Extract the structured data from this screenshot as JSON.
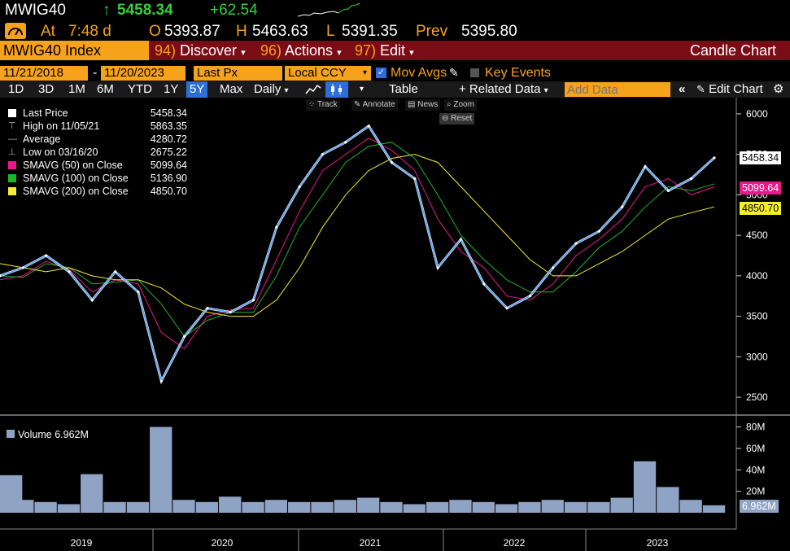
{
  "header": {
    "ticker": "MWIG40",
    "arrow": "↑",
    "last_price": "5458.34",
    "change": "+62.54",
    "at_label": "At",
    "time": "7:48 d",
    "open_label": "O",
    "open": "5393.87",
    "high_label": "H",
    "high": "5463.63",
    "low_label": "L",
    "low": "5391.35",
    "prev_label": "Prev",
    "prev": "5395.80"
  },
  "menubar": {
    "security": "MWIG40 Index",
    "discover_num": "94)",
    "discover": "Discover",
    "actions_num": "96)",
    "actions": "Actions",
    "edit_num": "97)",
    "edit": "Edit",
    "title": "Candle Chart"
  },
  "controls": {
    "start_date": "11/21/2018",
    "dash": "-",
    "end_date": "11/20/2023",
    "field": "Last Px",
    "currency": "Local CCY",
    "mov_avgs": "Mov Avgs",
    "key_events": "Key Events"
  },
  "toolbar": {
    "ranges": [
      "1D",
      "3D",
      "1M",
      "6M",
      "YTD",
      "1Y",
      "5Y",
      "Max"
    ],
    "selected_range": "5Y",
    "period": "Daily",
    "table": "Table",
    "related": "+ Related Data",
    "add_data_placeholder": "Add Data",
    "edit_chart": "Edit Chart"
  },
  "tools": {
    "track": "Track",
    "annotate": "Annotate",
    "news": "News",
    "zoom": "Zoom",
    "reset": "Reset"
  },
  "legend": [
    {
      "label": "Last Price",
      "value": "5458.34",
      "color": "#ffffff",
      "marker": "square"
    },
    {
      "label": "High on 11/05/21",
      "value": "5863.35",
      "color": "#aaaaaa",
      "marker": "high"
    },
    {
      "label": "Average",
      "value": "4280.72",
      "color": "#aaaaaa",
      "marker": "avg"
    },
    {
      "label": "Low on 03/16/20",
      "value": "2675.22",
      "color": "#aaaaaa",
      "marker": "low"
    },
    {
      "label": "SMAVG (50)  on Close",
      "value": "5099.64",
      "color": "#e8178a",
      "marker": "square"
    },
    {
      "label": "SMAVG (100)  on Close",
      "value": "5136.90",
      "color": "#1fb32b",
      "marker": "square"
    },
    {
      "label": "SMAVG (200)  on Close",
      "value": "4850.70",
      "color": "#f5ee2a",
      "marker": "square"
    }
  ],
  "volume_legend": {
    "label": "Volume",
    "value": "6.962M"
  },
  "price_tags": [
    {
      "value": "5458.34",
      "bg": "#ffffff",
      "fg": "#000000"
    },
    {
      "value": "5099.64",
      "bg": "#e8178a",
      "fg": "#ffffff"
    },
    {
      "value": "4850.70",
      "bg": "#f5ee2a",
      "fg": "#000000"
    }
  ],
  "volume_tag": {
    "value": "6.962M"
  },
  "chart_data": {
    "type": "line",
    "x": [
      "2018-11",
      "2019-01",
      "2019-04",
      "2019-07",
      "2019-10",
      "2020-01",
      "2020-02",
      "2020-03",
      "2020-05",
      "2020-07",
      "2020-09",
      "2020-11",
      "2021-01",
      "2021-04",
      "2021-07",
      "2021-09",
      "2021-11",
      "2021-12",
      "2022-02",
      "2022-03",
      "2022-05",
      "2022-07",
      "2022-09",
      "2022-10",
      "2022-12",
      "2023-02",
      "2023-04",
      "2023-06",
      "2023-08",
      "2023-09",
      "2023-10",
      "2023-11"
    ],
    "series": [
      {
        "name": "Last Price",
        "values": [
          4000,
          4100,
          4250,
          4050,
          3700,
          4050,
          3800,
          2700,
          3250,
          3600,
          3550,
          3700,
          4600,
          5100,
          5500,
          5650,
          5850,
          5400,
          5200,
          4100,
          4450,
          3900,
          3600,
          3750,
          4100,
          4400,
          4550,
          4850,
          5350,
          5050,
          5200,
          5458
        ]
      },
      {
        "name": "SMAVG (50)",
        "values": [
          3950,
          4000,
          4180,
          4080,
          3800,
          3950,
          3900,
          3300,
          3100,
          3500,
          3580,
          3600,
          4200,
          4800,
          5300,
          5500,
          5700,
          5550,
          5300,
          4700,
          4300,
          4100,
          3750,
          3700,
          3900,
          4250,
          4450,
          4700,
          5100,
          5200,
          5000,
          5100
        ]
      },
      {
        "name": "SMAVG (100)",
        "values": [
          4000,
          3980,
          4150,
          4100,
          3900,
          3920,
          3950,
          3650,
          3250,
          3450,
          3550,
          3550,
          4000,
          4600,
          5000,
          5400,
          5600,
          5650,
          5450,
          5000,
          4500,
          4200,
          3950,
          3800,
          3800,
          4050,
          4350,
          4550,
          4850,
          5100,
          5050,
          5137
        ]
      },
      {
        "name": "SMAVG (200)",
        "values": [
          4150,
          4100,
          4050,
          4100,
          4000,
          3950,
          3950,
          3850,
          3650,
          3550,
          3500,
          3500,
          3700,
          4100,
          4600,
          5000,
          5300,
          5450,
          5500,
          5400,
          5100,
          4800,
          4500,
          4200,
          4000,
          4000,
          4150,
          4300,
          4500,
          4700,
          4780,
          4851
        ]
      }
    ],
    "volume_m": [
      35,
      12,
      10,
      8,
      36,
      10,
      10,
      80,
      12,
      10,
      15,
      10,
      12,
      10,
      10,
      12,
      14,
      10,
      8,
      10,
      12,
      10,
      8,
      10,
      12,
      10,
      10,
      14,
      48,
      24,
      12,
      6.962
    ],
    "ylim": [
      2300,
      6200
    ],
    "yticks": [
      2500,
      3000,
      3500,
      4000,
      4500,
      5000,
      5500,
      6000
    ],
    "volume_ylim": [
      0,
      85
    ],
    "volume_ticks": [
      "20M",
      "40M",
      "60M",
      "80M"
    ],
    "x_tick_labels": [
      "2019",
      "2020",
      "2021",
      "2022",
      "2023"
    ],
    "grid": false,
    "legend_position": "top-left"
  }
}
